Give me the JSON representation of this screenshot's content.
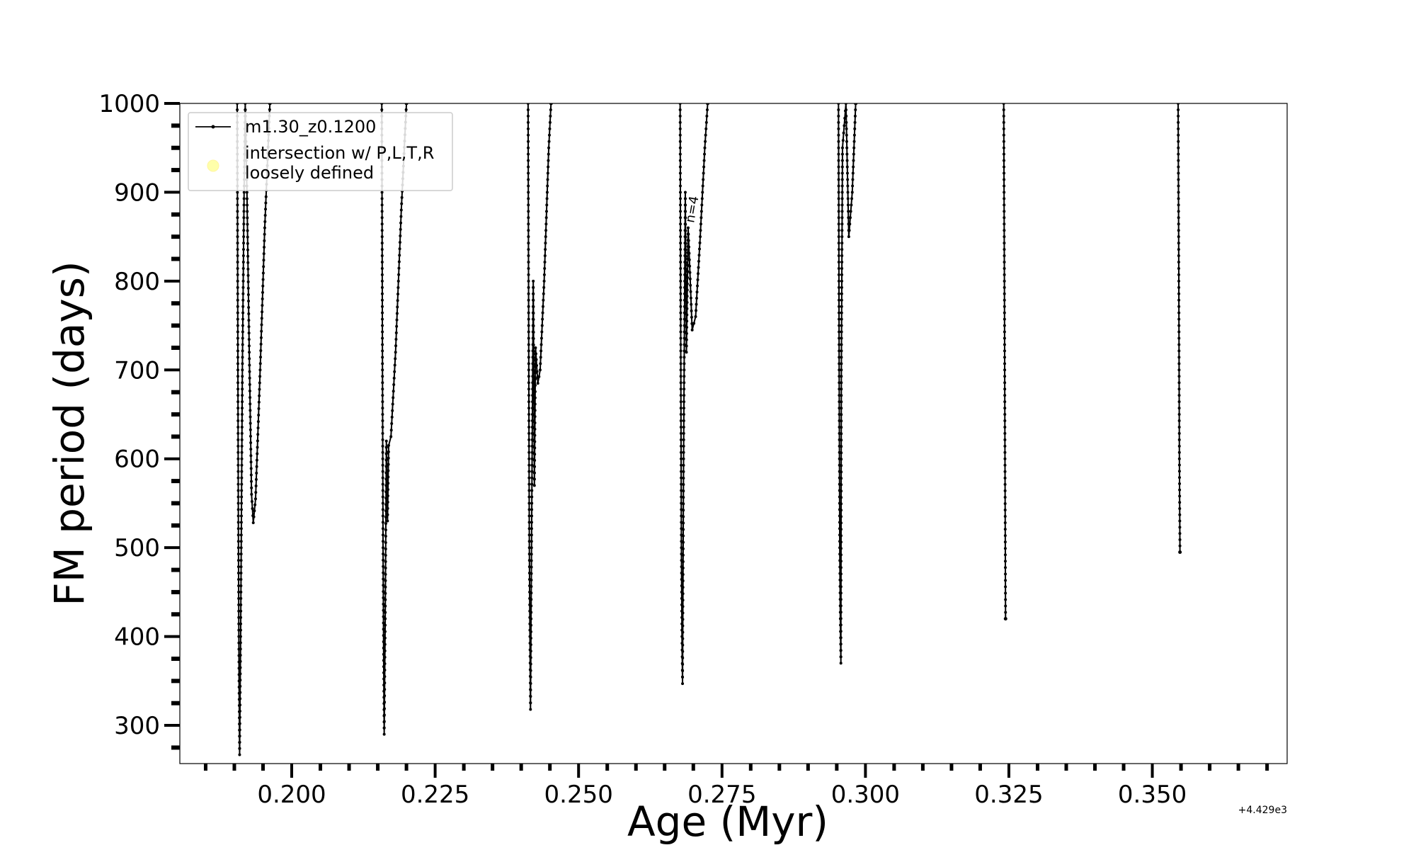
{
  "chart_data": {
    "type": "line",
    "title": "",
    "xlabel": "Age (Myr)",
    "ylabel": "FM period (days)",
    "x_offset_label": "+4.429e3",
    "xlim": [
      0.1805,
      0.3735
    ],
    "ylim": [
      257,
      1000
    ],
    "x_ticks": [
      {
        "value": 0.2,
        "label": "0.200"
      },
      {
        "value": 0.225,
        "label": "0.225"
      },
      {
        "value": 0.25,
        "label": "0.250"
      },
      {
        "value": 0.275,
        "label": "0.275"
      },
      {
        "value": 0.3,
        "label": "0.300"
      },
      {
        "value": 0.325,
        "label": "0.325"
      },
      {
        "value": 0.35,
        "label": "0.350"
      }
    ],
    "y_ticks": [
      {
        "value": 300,
        "label": "300"
      },
      {
        "value": 400,
        "label": "400"
      },
      {
        "value": 500,
        "label": "500"
      },
      {
        "value": 600,
        "label": "600"
      },
      {
        "value": 700,
        "label": "700"
      },
      {
        "value": 800,
        "label": "800"
      },
      {
        "value": 900,
        "label": "900"
      },
      {
        "value": 1000,
        "label": "1000"
      }
    ],
    "grid": false,
    "legend_position": "top-left",
    "legend": [
      {
        "label": "m1.30_z0.1200",
        "marker": "line-dot",
        "color": "#000000"
      },
      {
        "label_lines": [
          "intersection w/ P,L,T,R",
          "loosely defined"
        ],
        "marker": "circle",
        "color": "#ffffaa"
      }
    ],
    "annotations": [
      {
        "text": "n=4",
        "x": 0.2705,
        "y": 880,
        "rotation": -80
      }
    ],
    "series": [
      {
        "name": "m1.30_z0.1200",
        "color": "#000000",
        "segments": [
          [
            [
              0.1905,
              1000
            ],
            [
              0.19062,
              700
            ],
            [
              0.19072,
              500
            ],
            [
              0.19082,
              350
            ],
            [
              0.19092,
              267
            ],
            [
              0.1911,
              400
            ],
            [
              0.1914,
              700
            ],
            [
              0.1917,
              900
            ],
            [
              0.1919,
              1000
            ],
            [
              0.1922,
              900
            ],
            [
              0.1926,
              720
            ],
            [
              0.193,
              560
            ],
            [
              0.1933,
              528
            ],
            [
              0.1937,
              555
            ],
            [
              0.1945,
              700
            ],
            [
              0.1953,
              860
            ],
            [
              0.1962,
              1000
            ]
          ],
          [
            [
              0.2157,
              1000
            ],
            [
              0.21582,
              700
            ],
            [
              0.21592,
              500
            ],
            [
              0.21602,
              380
            ],
            [
              0.21612,
              290
            ],
            [
              0.2163,
              420
            ],
            [
              0.2165,
              620
            ],
            [
              0.2167,
              530
            ],
            [
              0.2169,
              615
            ],
            [
              0.2173,
              625
            ],
            [
              0.2181,
              720
            ],
            [
              0.2191,
              880
            ],
            [
              0.22,
              1000
            ]
          ],
          [
            [
              0.2412,
              1000
            ],
            [
              0.24132,
              700
            ],
            [
              0.24142,
              500
            ],
            [
              0.24152,
              400
            ],
            [
              0.24162,
              318
            ],
            [
              0.2418,
              500
            ],
            [
              0.2421,
              800
            ],
            [
              0.2423,
              570
            ],
            [
              0.2425,
              725
            ],
            [
              0.2429,
              685
            ],
            [
              0.2433,
              700
            ],
            [
              0.244,
              800
            ],
            [
              0.2448,
              950
            ],
            [
              0.2452,
              1000
            ]
          ],
          [
            [
              0.2677,
              1000
            ],
            [
              0.26782,
              700
            ],
            [
              0.26792,
              500
            ],
            [
              0.26802,
              400
            ],
            [
              0.26812,
              347
            ],
            [
              0.2683,
              600
            ],
            [
              0.2686,
              900
            ],
            [
              0.2688,
              720
            ],
            [
              0.2691,
              860
            ],
            [
              0.2698,
              745
            ],
            [
              0.2704,
              760
            ],
            [
              0.2712,
              850
            ],
            [
              0.272,
              950
            ],
            [
              0.2725,
              1000
            ]
          ],
          [
            [
              0.2953,
              1000
            ],
            [
              0.29542,
              700
            ],
            [
              0.29552,
              500
            ],
            [
              0.29562,
              420
            ],
            [
              0.29572,
              370
            ],
            [
              0.2958,
              700
            ],
            [
              0.296,
              950
            ],
            [
              0.2963,
              975
            ],
            [
              0.2966,
              1000
            ],
            [
              0.2971,
              850
            ],
            [
              0.2977,
              900
            ],
            [
              0.2983,
              1000
            ]
          ],
          [
            [
              0.3241,
              1000
            ],
            [
              0.32422,
              800
            ],
            [
              0.32432,
              600
            ],
            [
              0.32442,
              420
            ]
          ],
          [
            [
              0.3545,
              1000
            ],
            [
              0.35462,
              800
            ],
            [
              0.35472,
              600
            ],
            [
              0.35482,
              495
            ]
          ]
        ]
      }
    ]
  }
}
